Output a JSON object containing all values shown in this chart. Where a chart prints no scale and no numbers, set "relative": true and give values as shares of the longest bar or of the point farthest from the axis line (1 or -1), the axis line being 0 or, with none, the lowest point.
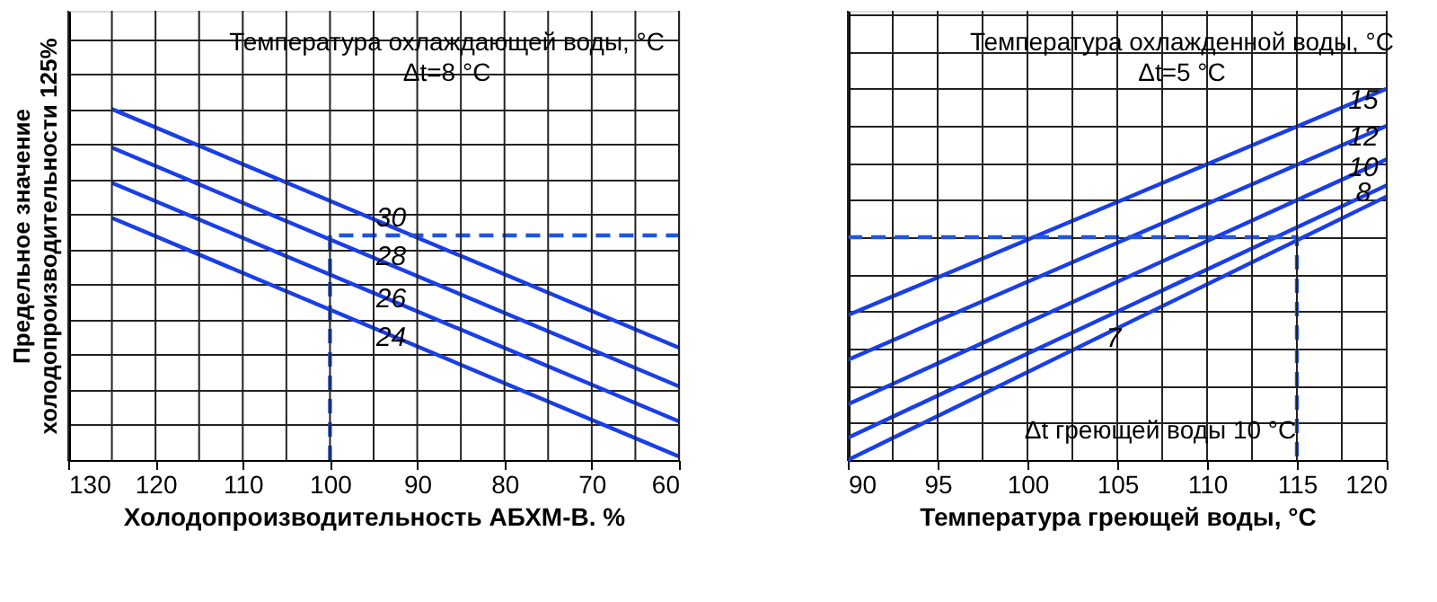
{
  "chart_data": [
    {
      "type": "line",
      "relative": true,
      "grid": true,
      "tick_labels": "x",
      "marker": "none",
      "ylabel": "Предельное значение\nхолодопроизводительности 125%",
      "xlabel": "Холодопроизводительность АБХМ-В. %",
      "xlim": [
        130,
        60
      ],
      "xticks": [
        130,
        {
          "value": 125,
          "label": null
        },
        120,
        {
          "value": 115,
          "label": null
        },
        110,
        {
          "value": 105,
          "label": null
        },
        100,
        {
          "value": 95,
          "label": null
        },
        90,
        {
          "value": 85,
          "label": null
        },
        80,
        {
          "value": 75,
          "label": null
        },
        70,
        {
          "value": 65,
          "label": null
        },
        60
      ],
      "series": [
        {
          "color": "#1a3ee8",
          "x": [
            125,
            60
          ],
          "values": [
            1.0,
            0.32
          ]
        },
        {
          "color": "#1a3ee8",
          "x": [
            125,
            60
          ],
          "values": [
            0.89,
            0.21
          ]
        },
        {
          "color": "#1a3ee8",
          "x": [
            125,
            60
          ],
          "values": [
            0.79,
            0.11
          ]
        },
        {
          "color": "#1a3ee8",
          "x": [
            125,
            60
          ],
          "values": [
            0.69,
            0.01
          ]
        },
        {
          "color": "#2255dd",
          "x": [
            100,
            100,
            60
          ],
          "values": [
            0,
            0.64,
            0.64
          ],
          "line_style": "dashed"
        }
      ],
      "annotations": [
        "Температура охлаждающей воды, °C",
        "Δt=8 °C",
        {
          "text": "30",
          "x": 93,
          "y": 0.69
        },
        {
          "text": "28",
          "x": 93,
          "y": 0.58
        },
        {
          "text": "26",
          "x": 93,
          "y": 0.46
        },
        {
          "text": "24",
          "x": 93,
          "y": 0.35
        }
      ]
    },
    {
      "type": "line",
      "relative": true,
      "grid": true,
      "tick_labels": "x",
      "marker": "none",
      "xlabel": "Температура греющей воды, °C",
      "xlim": [
        90,
        120
      ],
      "xticks": [
        90,
        {
          "value": 92.5,
          "label": null
        },
        95,
        {
          "value": 97.5,
          "label": null
        },
        100,
        {
          "value": 102.5,
          "label": null
        },
        105,
        {
          "value": 107.5,
          "label": null
        },
        110,
        {
          "value": 112.5,
          "label": null
        },
        115,
        {
          "value": 117.5,
          "label": null
        },
        120
      ],
      "series": [
        {
          "color": "#1a3ee8",
          "x": [
            90,
            120
          ],
          "values": [
            0.39,
            1.0
          ]
        },
        {
          "color": "#1a3ee8",
          "x": [
            90,
            120
          ],
          "values": [
            0.27,
            0.9
          ]
        },
        {
          "color": "#1a3ee8",
          "x": [
            90,
            120
          ],
          "values": [
            0.15,
            0.81
          ]
        },
        {
          "color": "#1a3ee8",
          "x": [
            90,
            120
          ],
          "values": [
            0.06,
            0.74
          ]
        },
        {
          "color": "#1a3ee8",
          "x": [
            90,
            120
          ],
          "values": [
            0,
            0.71
          ]
        },
        {
          "color": "#2255dd",
          "x": [
            90,
            115,
            115
          ],
          "values": [
            0.6,
            0.6,
            0
          ],
          "line_style": "dashed"
        }
      ],
      "annotations": [
        "Температура охлажденной воды, °C",
        "Δt=5 °C",
        "Δt греющей воды 10 °C",
        {
          "text": "15",
          "x": 118.7,
          "y": 0.97
        },
        {
          "text": "12",
          "x": 118.7,
          "y": 0.87
        },
        {
          "text": "10",
          "x": 118.7,
          "y": 0.79
        },
        {
          "text": "8",
          "x": 118.7,
          "y": 0.72
        },
        {
          "text": "7",
          "x": 104.8,
          "y": 0.33
        }
      ]
    }
  ]
}
